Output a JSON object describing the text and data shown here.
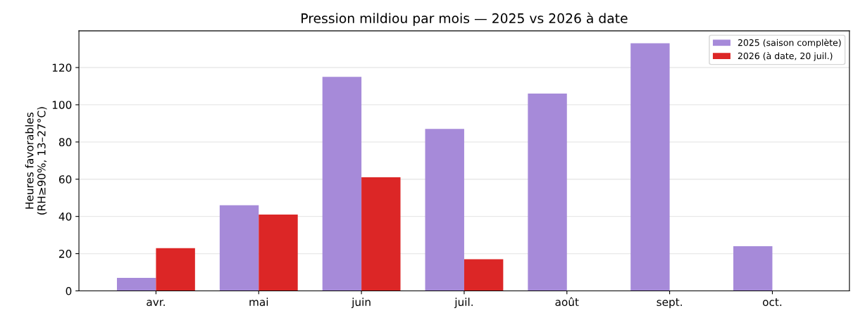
{
  "chart_data": {
    "type": "bar",
    "title": "Pression mildiou par mois — 2025 vs 2026 à date",
    "ylabel": "Heures favorables\n(RH≥90%, 13–27°C)",
    "categories": [
      "avr.",
      "mai",
      "juin",
      "juil.",
      "août",
      "sept.",
      "oct."
    ],
    "series": [
      {
        "name": "2025 (saison complète)",
        "color": "#a68ad9",
        "values": [
          7,
          46,
          115,
          87,
          106,
          133,
          24
        ]
      },
      {
        "name": "2026 (à date, 20 juil.)",
        "color": "#dc2626",
        "values": [
          23,
          41,
          61,
          17,
          null,
          null,
          null
        ]
      }
    ],
    "ylim": [
      0,
      139.7
    ],
    "yticks": [
      0,
      20,
      40,
      60,
      80,
      100,
      120
    ],
    "grid": "y",
    "legend": "top right"
  }
}
